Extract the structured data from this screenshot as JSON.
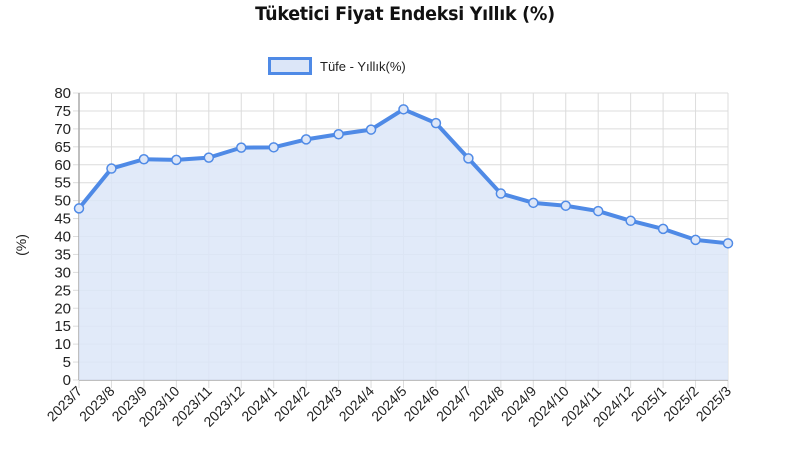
{
  "chart_data": {
    "type": "area",
    "title": "Tüketici Fiyat Endeksi Yıllık (%)",
    "xlabel": "",
    "ylabel": "(%)",
    "ylim": [
      0,
      80
    ],
    "yticks": [
      0,
      5,
      10,
      15,
      20,
      25,
      30,
      35,
      40,
      45,
      50,
      55,
      60,
      65,
      70,
      75,
      80
    ],
    "grid": true,
    "legend_position": "top",
    "categories": [
      "2023/7",
      "2023/8",
      "2023/9",
      "2023/10",
      "2023/11",
      "2023/12",
      "2024/1",
      "2024/2",
      "2024/3",
      "2024/4",
      "2024/5",
      "2024/6",
      "2024/7",
      "2024/8",
      "2024/9",
      "2024/10",
      "2024/11",
      "2024/12",
      "2025/1",
      "2025/2",
      "2025/3"
    ],
    "series": [
      {
        "name": "Tüfe - Yıllık(%)",
        "color": "#4f8ae6",
        "fill": "#dce6f8",
        "values": [
          47.83,
          58.94,
          61.53,
          61.36,
          61.98,
          64.77,
          64.86,
          67.07,
          68.5,
          69.8,
          75.45,
          71.6,
          61.78,
          51.97,
          49.38,
          48.58,
          47.09,
          44.38,
          42.12,
          39.05,
          38.1
        ]
      }
    ]
  },
  "legend": {
    "label": "Tüfe - Yıllık(%)"
  }
}
